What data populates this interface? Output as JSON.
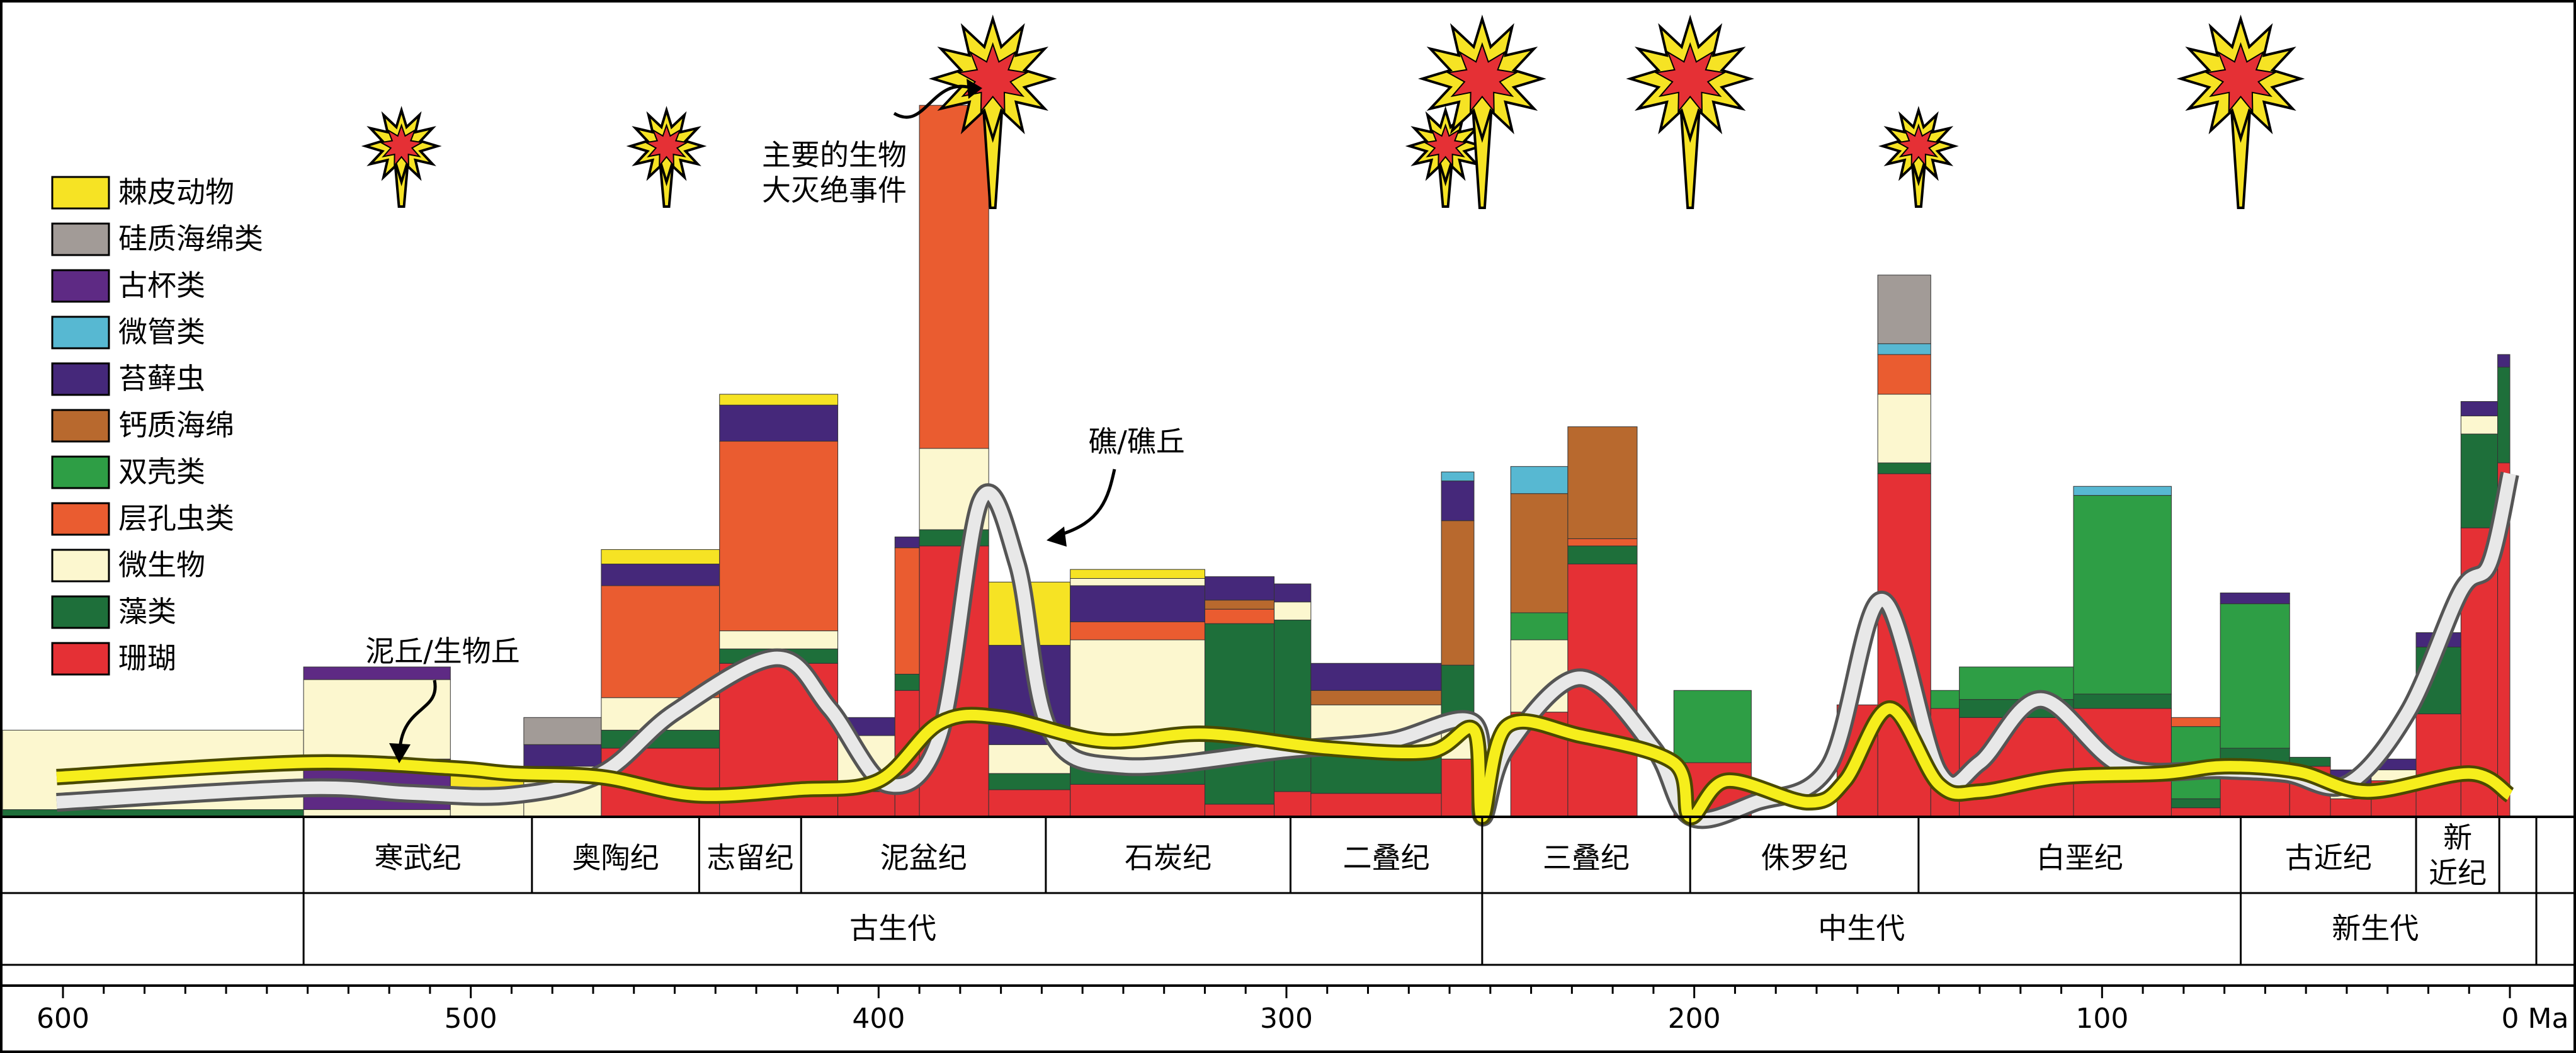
{
  "chart_data": {
    "type": "bar",
    "x_label_unit": "Ma",
    "x_ticks": [
      600,
      500,
      400,
      300,
      200,
      100,
      0
    ],
    "x_range": [
      630,
      0
    ],
    "legend": [
      {
        "key": "echinoderms",
        "label": "棘皮动物",
        "color": "#F6E324"
      },
      {
        "key": "siliceous_sponges",
        "label": "硅质海绵类",
        "color": "#A29B97"
      },
      {
        "key": "archaeocyaths",
        "label": "古杯类",
        "color": "#5E2A84"
      },
      {
        "key": "microtubes",
        "label": "微管类",
        "color": "#57B8D2"
      },
      {
        "key": "bryozoans",
        "label": "苔藓虫",
        "color": "#45287A"
      },
      {
        "key": "calcareous_sponges",
        "label": "钙质海绵",
        "color": "#B8692E"
      },
      {
        "key": "bivalves",
        "label": "双壳类",
        "color": "#2E9E45"
      },
      {
        "key": "stromatoporoids",
        "label": "层孔虫类",
        "color": "#EA5C30"
      },
      {
        "key": "microbes",
        "label": "微生物",
        "color": "#FCF7CF"
      },
      {
        "key": "algae",
        "label": "藻类",
        "color": "#1E6F3A"
      },
      {
        "key": "corals",
        "label": "珊瑚",
        "color": "#E53035"
      }
    ],
    "curves": [
      {
        "label": "礁/礁丘",
        "color": "#E8E8E8"
      },
      {
        "label": "泥丘/生物丘",
        "color": "#F6EE1C"
      }
    ],
    "extinction_label": "主要的生物\n大灭绝事件",
    "extinction_events_ma": [
      {
        "age": 517,
        "size": "small"
      },
      {
        "age": 452,
        "size": "small"
      },
      {
        "age": 372,
        "size": "large"
      },
      {
        "age": 261,
        "size": "small"
      },
      {
        "age": 252,
        "size": "large"
      },
      {
        "age": 201,
        "size": "large"
      },
      {
        "age": 145,
        "size": "small"
      },
      {
        "age": 66,
        "size": "large"
      }
    ],
    "periods": [
      {
        "name": "寒武纪",
        "start": 541,
        "end": 485
      },
      {
        "name": "奥陶纪",
        "start": 485,
        "end": 444
      },
      {
        "name": "志留纪",
        "start": 444,
        "end": 419
      },
      {
        "name": "泥盆纪",
        "start": 419,
        "end": 359
      },
      {
        "name": "石炭纪",
        "start": 359,
        "end": 299
      },
      {
        "name": "二叠纪",
        "start": 299,
        "end": 252
      },
      {
        "name": "三叠纪",
        "start": 252,
        "end": 201
      },
      {
        "name": "侏罗纪",
        "start": 201,
        "end": 145
      },
      {
        "name": "白垩纪",
        "start": 145,
        "end": 66
      },
      {
        "name": "古近纪",
        "start": 66,
        "end": 23
      },
      {
        "name": "新\n近纪",
        "start": 23,
        "end": 2.6
      }
    ],
    "eras": [
      {
        "name": "古生代",
        "start": 541,
        "end": 252
      },
      {
        "name": "中生代",
        "start": 252,
        "end": 66
      },
      {
        "name": "新生代",
        "start": 66,
        "end": 0
      }
    ],
    "y_max": 400,
    "bars": [
      {
        "start": 630,
        "end": 541,
        "stack": [
          [
            "algae",
            4
          ],
          [
            "microbes",
            44
          ]
        ]
      },
      {
        "start": 541,
        "end": 505,
        "stack": [
          [
            "microbes",
            4
          ],
          [
            "archaeocyaths",
            28
          ],
          [
            "microbes",
            44
          ],
          [
            "archaeocyaths",
            7
          ]
        ]
      },
      {
        "start": 505,
        "end": 487,
        "stack": [
          [
            "microbes",
            12
          ],
          [
            "echinoderms",
            12
          ]
        ]
      },
      {
        "start": 487,
        "end": 468,
        "stack": [
          [
            "microbes",
            28
          ],
          [
            "bryozoans",
            12
          ],
          [
            "siliceous_sponges",
            15
          ]
        ]
      },
      {
        "start": 468,
        "end": 439,
        "stack": [
          [
            "corals",
            38
          ],
          [
            "algae",
            10
          ],
          [
            "microbes",
            18
          ],
          [
            "stromatoporoids",
            62
          ],
          [
            "bryozoans",
            12
          ],
          [
            "echinoderms",
            8
          ]
        ]
      },
      {
        "start": 439,
        "end": 410,
        "stack": [
          [
            "corals",
            85
          ],
          [
            "algae",
            8
          ],
          [
            "microbes",
            10
          ],
          [
            "stromatoporoids",
            105
          ],
          [
            "bryozoans",
            20
          ],
          [
            "echinoderms",
            6
          ]
        ]
      },
      {
        "start": 410,
        "end": 396,
        "stack": [
          [
            "corals",
            14
          ],
          [
            "algae",
            3
          ],
          [
            "microbes",
            28
          ],
          [
            "bryozoans",
            10
          ]
        ]
      },
      {
        "start": 396,
        "end": 390,
        "stack": [
          [
            "corals",
            70
          ],
          [
            "algae",
            9
          ],
          [
            "stromatoporoids",
            70
          ],
          [
            "bryozoans",
            6
          ]
        ]
      },
      {
        "start": 390,
        "end": 373,
        "stack": [
          [
            "corals",
            150
          ],
          [
            "algae",
            9
          ],
          [
            "microbes",
            45
          ],
          [
            "stromatoporoids",
            190
          ]
        ]
      },
      {
        "start": 373,
        "end": 353,
        "stack": [
          [
            "corals",
            15
          ],
          [
            "algae",
            9
          ],
          [
            "microbes",
            16
          ],
          [
            "bryozoans",
            55
          ],
          [
            "echinoderms",
            35
          ]
        ]
      },
      {
        "start": 353,
        "end": 320,
        "stack": [
          [
            "corals",
            18
          ],
          [
            "algae",
            10
          ],
          [
            "microbes",
            70
          ],
          [
            "stromatoporoids",
            10
          ],
          [
            "bryozoans",
            20
          ],
          [
            "microbes",
            4
          ],
          [
            "echinoderms",
            5
          ]
        ]
      },
      {
        "start": 320,
        "end": 303,
        "stack": [
          [
            "corals",
            7
          ],
          [
            "algae",
            100
          ],
          [
            "stromatoporoids",
            8
          ],
          [
            "calcareous_sponges",
            5
          ],
          [
            "bryozoans",
            13
          ]
        ]
      },
      {
        "start": 303,
        "end": 294,
        "stack": [
          [
            "corals",
            14
          ],
          [
            "algae",
            95
          ],
          [
            "microbes",
            10
          ],
          [
            "bryozoans",
            10
          ]
        ]
      },
      {
        "start": 294,
        "end": 262,
        "stack": [
          [
            "corals",
            13
          ],
          [
            "algae",
            25
          ],
          [
            "microbes",
            24
          ],
          [
            "calcareous_sponges",
            8
          ],
          [
            "bryozoans",
            15
          ]
        ]
      },
      {
        "start": 262,
        "end": 254,
        "stack": [
          [
            "corals",
            32
          ],
          [
            "microbes",
            22
          ],
          [
            "algae",
            30
          ],
          [
            "calcareous_sponges",
            80
          ],
          [
            "bryozoans",
            22
          ],
          [
            "microtubes",
            5
          ]
        ]
      },
      {
        "start": 245,
        "end": 231,
        "stack": [
          [
            "corals",
            58
          ],
          [
            "microbes",
            40
          ],
          [
            "bivalves",
            15
          ],
          [
            "calcareous_sponges",
            66
          ],
          [
            "microtubes",
            15
          ]
        ]
      },
      {
        "start": 231,
        "end": 214,
        "stack": [
          [
            "corals",
            140
          ],
          [
            "algae",
            10
          ],
          [
            "stromatoporoids",
            4
          ],
          [
            "calcareous_sponges",
            62
          ]
        ]
      },
      {
        "start": 205,
        "end": 186,
        "stack": [
          [
            "corals",
            30
          ],
          [
            "bivalves",
            40
          ]
        ]
      },
      {
        "start": 165,
        "end": 155,
        "stack": [
          [
            "corals",
            62
          ]
        ]
      },
      {
        "start": 155,
        "end": 142,
        "stack": [
          [
            "corals",
            190
          ],
          [
            "algae",
            6
          ],
          [
            "microbes",
            38
          ],
          [
            "stromatoporoids",
            22
          ],
          [
            "microtubes",
            6
          ],
          [
            "siliceous_sponges",
            38
          ]
        ]
      },
      {
        "start": 142,
        "end": 135,
        "stack": [
          [
            "corals",
            60
          ],
          [
            "bivalves",
            10
          ]
        ]
      },
      {
        "start": 135,
        "end": 107,
        "stack": [
          [
            "corals",
            55
          ],
          [
            "algae",
            10
          ],
          [
            "bivalves",
            18
          ]
        ]
      },
      {
        "start": 107,
        "end": 83,
        "stack": [
          [
            "corals",
            60
          ],
          [
            "algae",
            8
          ],
          [
            "bivalves",
            110
          ],
          [
            "microtubes",
            5
          ]
        ]
      },
      {
        "start": 83,
        "end": 71,
        "stack": [
          [
            "corals",
            5
          ],
          [
            "algae",
            5
          ],
          [
            "bivalves",
            40
          ],
          [
            "stromatoporoids",
            5
          ]
        ]
      },
      {
        "start": 71,
        "end": 54,
        "stack": [
          [
            "corals",
            30
          ],
          [
            "algae",
            8
          ],
          [
            "bivalves",
            80
          ],
          [
            "bryozoans",
            6
          ]
        ]
      },
      {
        "start": 54,
        "end": 44,
        "stack": [
          [
            "corals",
            28
          ],
          [
            "algae",
            5
          ]
        ]
      },
      {
        "start": 44,
        "end": 34,
        "stack": [
          [
            "corals",
            10
          ],
          [
            "microbes",
            8
          ],
          [
            "bryozoans",
            8
          ]
        ]
      },
      {
        "start": 34,
        "end": 23,
        "stack": [
          [
            "corals",
            20
          ],
          [
            "microbes",
            6
          ],
          [
            "bryozoans",
            6
          ]
        ]
      },
      {
        "start": 23,
        "end": 12,
        "stack": [
          [
            "corals",
            57
          ],
          [
            "algae",
            37
          ],
          [
            "stromatoporoids",
            0
          ],
          [
            "bryozoans",
            8
          ]
        ]
      },
      {
        "start": 12,
        "end": 3,
        "stack": [
          [
            "corals",
            160
          ],
          [
            "algae",
            52
          ],
          [
            "microbes",
            10
          ],
          [
            "bryozoans",
            8
          ]
        ]
      },
      {
        "start": 3,
        "end": 0,
        "stack": [
          [
            "corals",
            196
          ],
          [
            "algae",
            53
          ],
          [
            "bryozoans",
            7
          ]
        ]
      }
    ],
    "reef_curve_points": [
      [
        630,
        8
      ],
      [
        541,
        16
      ],
      [
        515,
        13
      ],
      [
        490,
        12
      ],
      [
        468,
        24
      ],
      [
        450,
        58
      ],
      [
        425,
        88
      ],
      [
        412,
        60
      ],
      [
        398,
        18
      ],
      [
        385,
        45
      ],
      [
        375,
        175
      ],
      [
        366,
        140
      ],
      [
        358,
        48
      ],
      [
        340,
        28
      ],
      [
        300,
        37
      ],
      [
        275,
        42
      ],
      [
        254,
        52
      ],
      [
        252,
        0
      ],
      [
        246,
        38
      ],
      [
        228,
        77
      ],
      [
        210,
        38
      ],
      [
        201,
        0
      ],
      [
        185,
        8
      ],
      [
        167,
        28
      ],
      [
        154,
        120
      ],
      [
        140,
        25
      ],
      [
        130,
        30
      ],
      [
        115,
        65
      ],
      [
        95,
        28
      ],
      [
        71,
        26
      ],
      [
        55,
        24
      ],
      [
        40,
        18
      ],
      [
        25,
        58
      ],
      [
        12,
        125
      ],
      [
        5,
        140
      ],
      [
        0,
        190
      ]
    ],
    "mound_curve_points": [
      [
        630,
        22
      ],
      [
        541,
        30
      ],
      [
        505,
        27
      ],
      [
        490,
        24
      ],
      [
        468,
        22
      ],
      [
        445,
        12
      ],
      [
        420,
        15
      ],
      [
        400,
        20
      ],
      [
        385,
        52
      ],
      [
        370,
        55
      ],
      [
        345,
        42
      ],
      [
        320,
        46
      ],
      [
        290,
        38
      ],
      [
        265,
        36
      ],
      [
        254,
        48
      ],
      [
        252,
        0
      ],
      [
        246,
        50
      ],
      [
        228,
        45
      ],
      [
        205,
        30
      ],
      [
        201,
        0
      ],
      [
        192,
        20
      ],
      [
        172,
        8
      ],
      [
        163,
        20
      ],
      [
        152,
        60
      ],
      [
        140,
        18
      ],
      [
        130,
        14
      ],
      [
        110,
        22
      ],
      [
        85,
        24
      ],
      [
        70,
        28
      ],
      [
        52,
        25
      ],
      [
        35,
        14
      ],
      [
        10,
        24
      ],
      [
        0,
        12
      ]
    ]
  }
}
